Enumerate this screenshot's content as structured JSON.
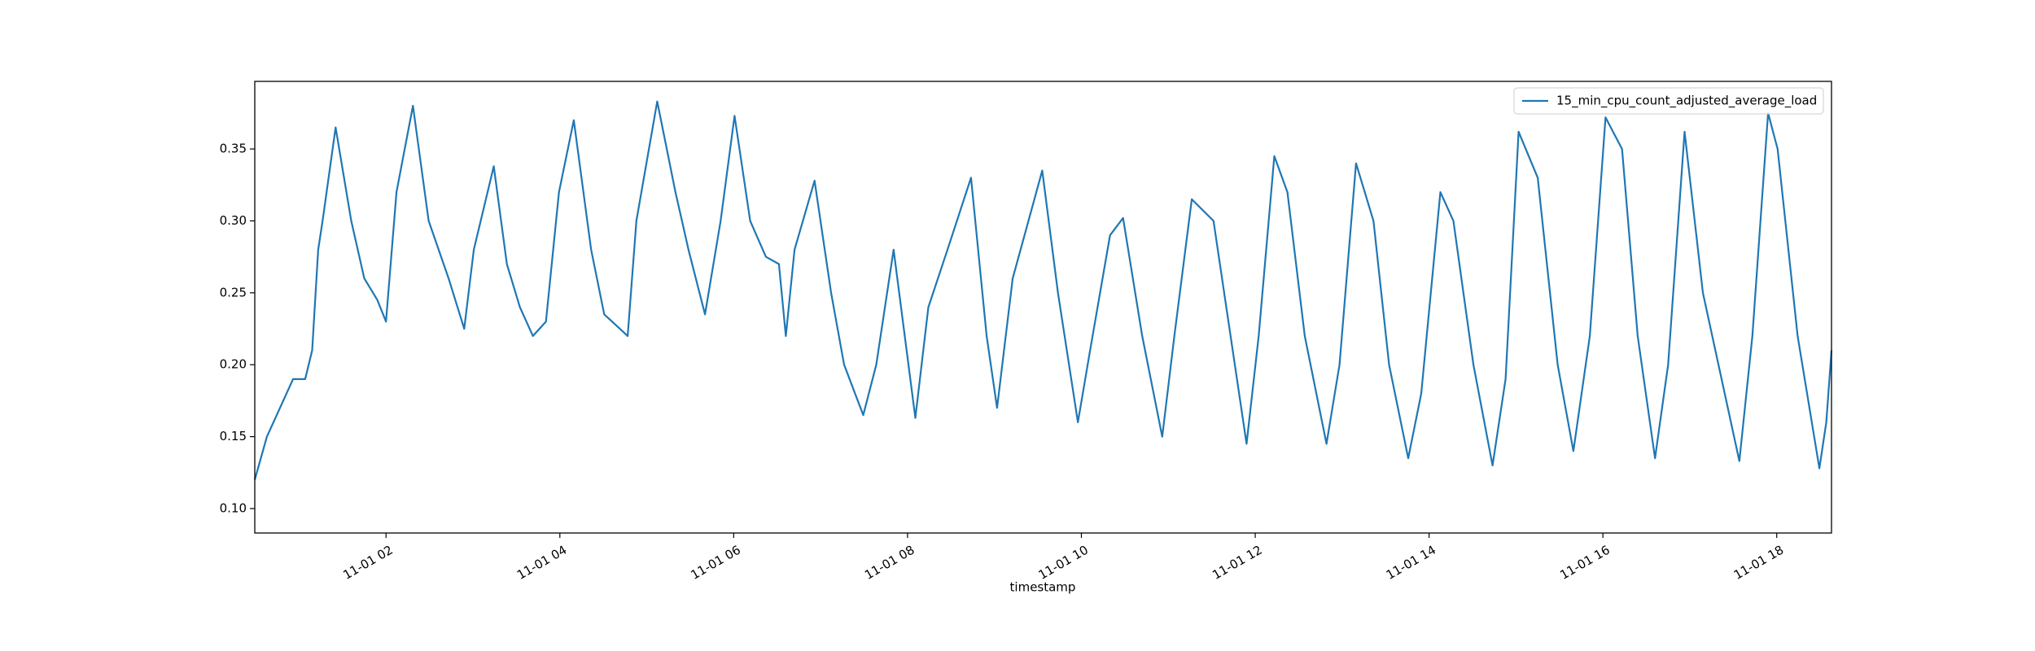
{
  "chart_data": {
    "type": "line",
    "xlabel": "timestamp",
    "x": [
      0.49,
      0.63,
      0.78,
      0.93,
      1.07,
      1.15,
      1.22,
      1.27,
      1.42,
      1.6,
      1.75,
      1.9,
      2.0,
      2.12,
      2.31,
      2.49,
      2.72,
      2.9,
      3.01,
      3.24,
      3.39,
      3.54,
      3.69,
      3.84,
      3.99,
      4.16,
      4.36,
      4.51,
      4.78,
      4.88,
      5.12,
      5.33,
      5.48,
      5.67,
      5.85,
      6.01,
      6.19,
      6.37,
      6.52,
      6.6,
      6.7,
      6.93,
      7.12,
      7.27,
      7.49,
      7.64,
      7.84,
      8.09,
      8.24,
      8.46,
      8.73,
      8.91,
      9.03,
      9.21,
      9.55,
      9.73,
      9.96,
      10.1,
      10.33,
      10.48,
      10.7,
      10.93,
      11.07,
      11.27,
      11.52,
      11.9,
      12.04,
      12.22,
      12.37,
      12.57,
      12.82,
      12.97,
      13.16,
      13.36,
      13.54,
      13.76,
      13.91,
      14.13,
      14.28,
      14.51,
      14.73,
      14.88,
      15.03,
      15.25,
      15.48,
      15.66,
      15.85,
      16.03,
      16.22,
      16.4,
      16.6,
      16.75,
      16.94,
      17.15,
      17.57,
      17.72,
      17.9,
      18.01,
      18.24,
      18.49,
      18.57,
      18.63
    ],
    "series": [
      {
        "name": "15_min_cpu_count_adjusted_average_load",
        "color": "#1f77b4",
        "values": [
          0.12,
          0.15,
          0.17,
          0.19,
          0.19,
          0.21,
          0.28,
          0.3,
          0.365,
          0.3,
          0.26,
          0.245,
          0.23,
          0.32,
          0.38,
          0.3,
          0.26,
          0.225,
          0.28,
          0.338,
          0.27,
          0.24,
          0.22,
          0.23,
          0.32,
          0.37,
          0.28,
          0.235,
          0.22,
          0.3,
          0.383,
          0.32,
          0.28,
          0.235,
          0.3,
          0.373,
          0.3,
          0.275,
          0.27,
          0.22,
          0.28,
          0.328,
          0.25,
          0.2,
          0.165,
          0.2,
          0.28,
          0.163,
          0.24,
          0.28,
          0.33,
          0.22,
          0.17,
          0.26,
          0.335,
          0.25,
          0.16,
          0.21,
          0.29,
          0.302,
          0.22,
          0.15,
          0.22,
          0.315,
          0.3,
          0.145,
          0.22,
          0.345,
          0.32,
          0.22,
          0.145,
          0.2,
          0.34,
          0.3,
          0.2,
          0.135,
          0.18,
          0.32,
          0.3,
          0.2,
          0.13,
          0.19,
          0.362,
          0.33,
          0.2,
          0.14,
          0.22,
          0.372,
          0.35,
          0.22,
          0.135,
          0.2,
          0.362,
          0.25,
          0.133,
          0.22,
          0.375,
          0.35,
          0.22,
          0.128,
          0.16,
          0.21
        ]
      }
    ],
    "xlim": [
      0.49,
      18.63
    ],
    "ylim": [
      0.083,
      0.397
    ],
    "xticks": [
      {
        "value": 2,
        "label": "11-01 02"
      },
      {
        "value": 4,
        "label": "11-01 04"
      },
      {
        "value": 6,
        "label": "11-01 06"
      },
      {
        "value": 8,
        "label": "11-01 08"
      },
      {
        "value": 10,
        "label": "11-01 10"
      },
      {
        "value": 12,
        "label": "11-01 12"
      },
      {
        "value": 14,
        "label": "11-01 14"
      },
      {
        "value": 16,
        "label": "11-01 16"
      },
      {
        "value": 18,
        "label": "11-01 18"
      }
    ],
    "yticks": [
      {
        "value": 0.1,
        "label": "0.10"
      },
      0.15,
      {
        "value": 0.2,
        "label": "0.20"
      },
      0.25,
      {
        "value": 0.3,
        "label": "0.30"
      },
      0.35
    ],
    "legend": "upper right",
    "grid": false
  }
}
